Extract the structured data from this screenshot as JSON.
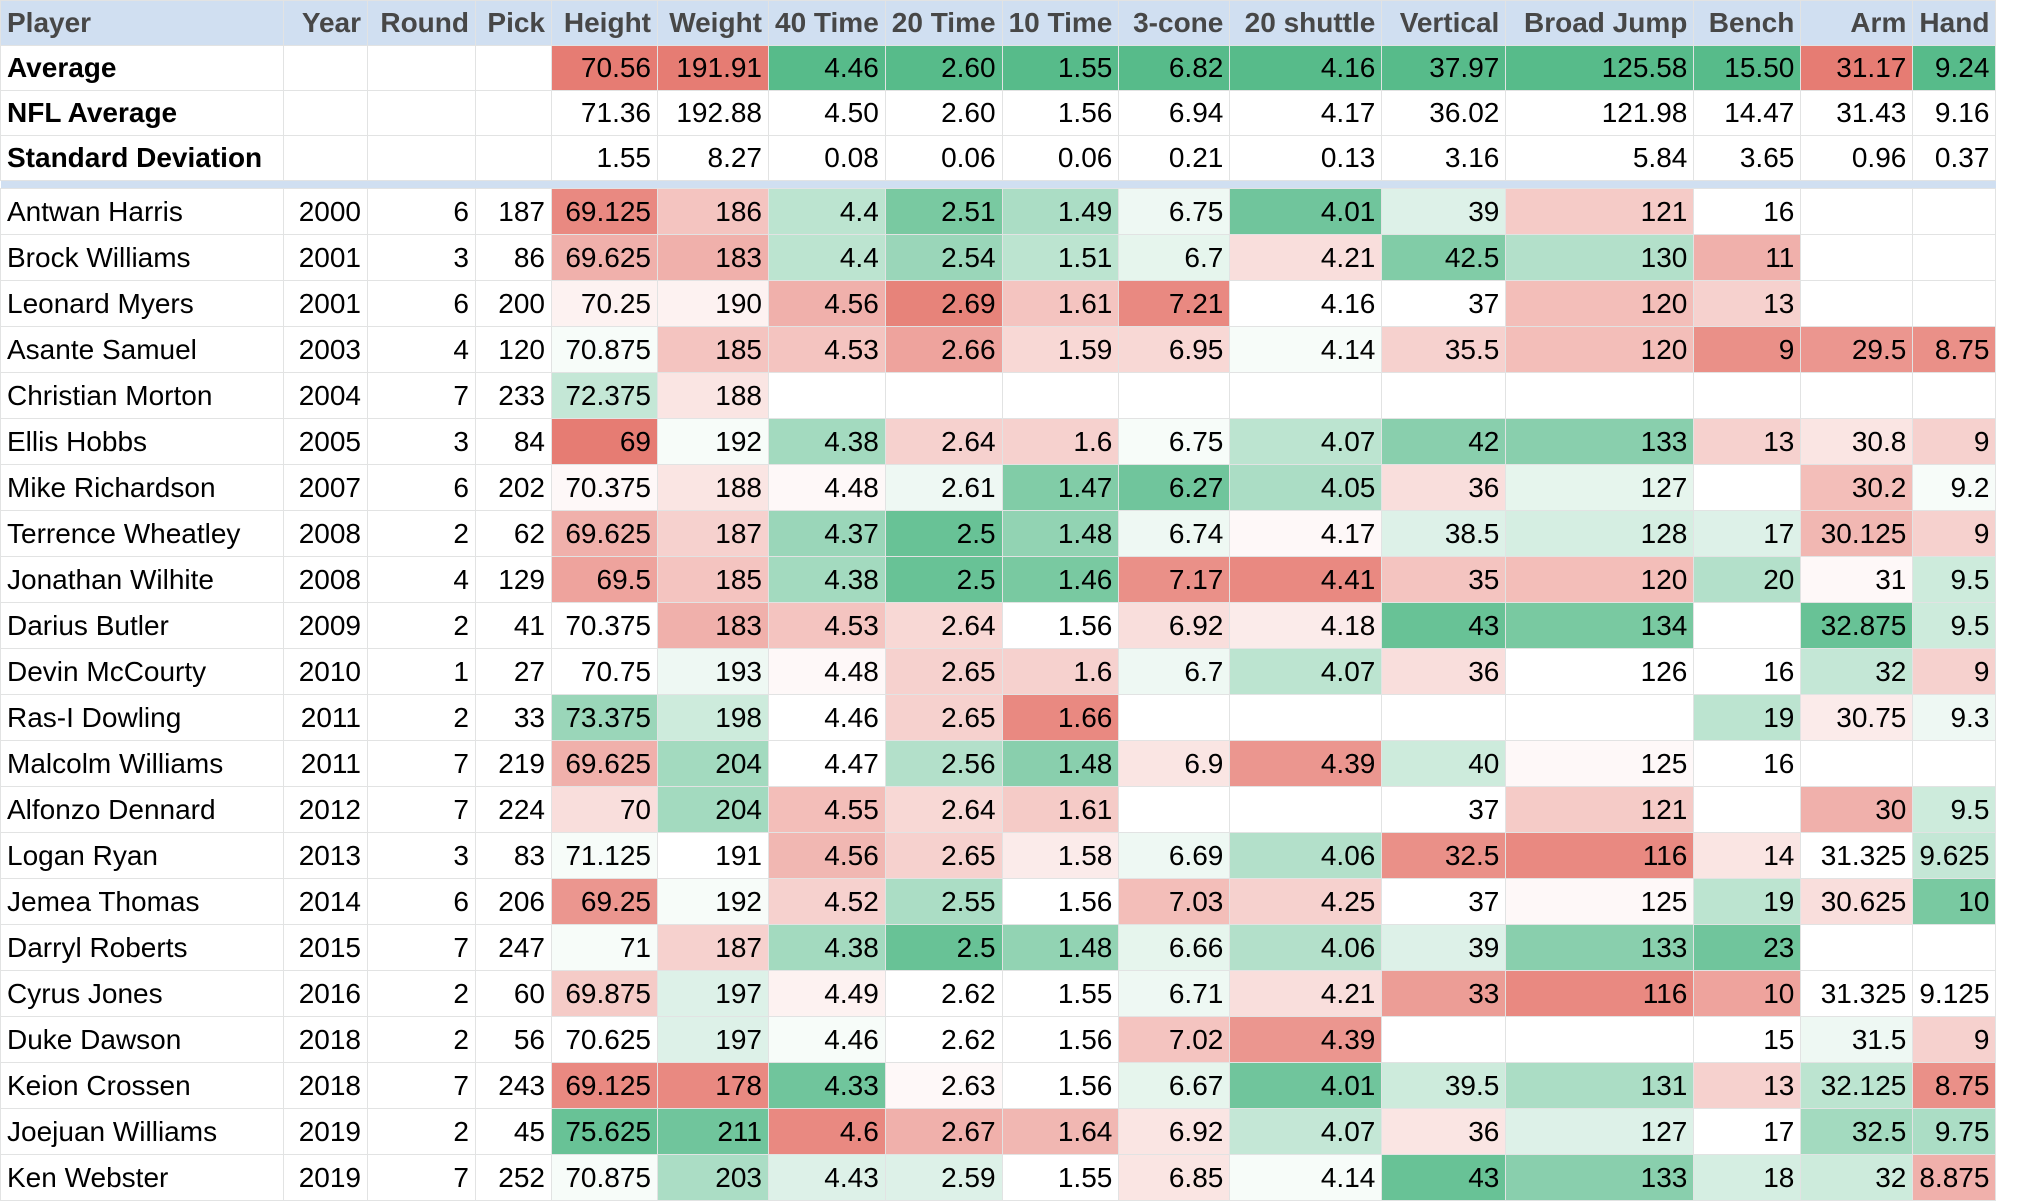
{
  "columns": [
    "Player",
    "Year",
    "Round",
    "Pick",
    "Height",
    "Weight",
    "40 Time",
    "20 Time",
    "10 Time",
    "3-cone",
    "20 shuttle",
    "Vertical",
    "Broad Jump",
    "Bench",
    "Arm",
    "Hand"
  ],
  "colors": {
    "header_bg": "#d0dff1",
    "header_text": "#474747",
    "grid": "#e2e3e3",
    "strong_green": "#57bb8a",
    "strong_red": "#e67c73"
  },
  "stats_rows": [
    {
      "label": "Average",
      "values": [
        "",
        "",
        "",
        "70.56",
        "191.91",
        "4.46",
        "2.60",
        "1.55",
        "6.82",
        "4.16",
        "37.97",
        "125.58",
        "15.50",
        "31.17",
        "9.24"
      ],
      "tones": [
        null,
        null,
        null,
        -1,
        -1,
        1,
        1,
        1,
        1,
        1,
        1,
        1,
        1,
        -1,
        1
      ]
    },
    {
      "label": "NFL Average",
      "values": [
        "",
        "",
        "",
        "71.36",
        "192.88",
        "4.50",
        "2.60",
        "1.56",
        "6.94",
        "4.17",
        "36.02",
        "121.98",
        "14.47",
        "31.43",
        "9.16"
      ],
      "tones": [
        null,
        null,
        null,
        null,
        null,
        null,
        null,
        null,
        null,
        null,
        null,
        null,
        null,
        null,
        null
      ]
    },
    {
      "label": "Standard Deviation",
      "values": [
        "",
        "",
        "",
        "1.55",
        "8.27",
        "0.08",
        "0.06",
        "0.06",
        "0.21",
        "0.13",
        "3.16",
        "5.84",
        "3.65",
        "0.96",
        "0.37"
      ],
      "tones": [
        null,
        null,
        null,
        null,
        null,
        null,
        null,
        null,
        null,
        null,
        null,
        null,
        null,
        null,
        null
      ]
    }
  ],
  "players": [
    {
      "name": "Antwan Harris",
      "values": [
        "2000",
        "6",
        "187",
        "69.125",
        "186",
        "4.4",
        "2.51",
        "1.49",
        "6.75",
        "4.01",
        "39",
        "121",
        "16",
        "",
        ""
      ],
      "tones": [
        null,
        null,
        null,
        -0.9,
        -0.45,
        0.4,
        0.8,
        0.5,
        0.1,
        0.85,
        0.2,
        -0.4,
        null,
        null,
        null
      ]
    },
    {
      "name": "Brock Williams",
      "values": [
        "2001",
        "3",
        "86",
        "69.625",
        "183",
        "4.4",
        "2.54",
        "1.51",
        "6.7",
        "4.21",
        "42.5",
        "130",
        "11",
        "",
        ""
      ],
      "tones": [
        null,
        null,
        null,
        -0.6,
        -0.6,
        0.4,
        0.6,
        0.4,
        0.15,
        -0.25,
        0.75,
        0.45,
        -0.6,
        null,
        null
      ]
    },
    {
      "name": "Leonard Myers",
      "values": [
        "2001",
        "6",
        "200",
        "70.25",
        "190",
        "4.56",
        "2.69",
        "1.61",
        "7.21",
        "4.16",
        "37",
        "120",
        "13",
        "",
        ""
      ],
      "tones": [
        null,
        null,
        null,
        -0.1,
        -0.1,
        -0.6,
        -0.95,
        -0.45,
        -0.9,
        0,
        0,
        -0.5,
        -0.35,
        null,
        null
      ]
    },
    {
      "name": "Asante Samuel",
      "values": [
        "2003",
        "4",
        "120",
        "70.875",
        "185",
        "4.53",
        "2.66",
        "1.59",
        "6.95",
        "4.14",
        "35.5",
        "120",
        "9",
        "29.5",
        "8.75"
      ],
      "tones": [
        null,
        null,
        null,
        0.05,
        -0.45,
        -0.45,
        -0.7,
        -0.3,
        -0.3,
        0.05,
        -0.35,
        -0.5,
        -0.85,
        -0.8,
        -0.85
      ]
    },
    {
      "name": "Christian Morton",
      "values": [
        "2004",
        "7",
        "233",
        "72.375",
        "188",
        "",
        "",
        "",
        "",
        "",
        "",
        "",
        "",
        "",
        ""
      ],
      "tones": [
        null,
        null,
        null,
        0.35,
        -0.2,
        null,
        null,
        null,
        null,
        null,
        null,
        null,
        null,
        null,
        null
      ]
    },
    {
      "name": "Ellis Hobbs",
      "values": [
        "2005",
        "3",
        "84",
        "69",
        "192",
        "4.38",
        "2.64",
        "1.6",
        "6.75",
        "4.07",
        "42",
        "133",
        "13",
        "30.8",
        "9"
      ],
      "tones": [
        null,
        null,
        null,
        -1,
        0.05,
        0.55,
        -0.35,
        -0.35,
        0.05,
        0.4,
        0.7,
        0.7,
        -0.35,
        -0.2,
        -0.35
      ]
    },
    {
      "name": "Mike Richardson",
      "values": [
        "2007",
        "6",
        "202",
        "70.375",
        "188",
        "4.48",
        "2.61",
        "1.47",
        "6.27",
        "4.05",
        "36",
        "127",
        "",
        "30.2",
        "9.2"
      ],
      "tones": [
        null,
        null,
        null,
        -0.05,
        -0.2,
        -0.05,
        0.1,
        0.75,
        0.85,
        0.5,
        -0.25,
        0.15,
        null,
        -0.5,
        0.05
      ]
    },
    {
      "name": "Terrence Wheatley",
      "values": [
        "2008",
        "2",
        "62",
        "69.625",
        "187",
        "4.37",
        "2.5",
        "1.48",
        "6.74",
        "4.17",
        "38.5",
        "128",
        "17",
        "30.125",
        "9"
      ],
      "tones": [
        null,
        null,
        null,
        -0.6,
        -0.35,
        0.6,
        0.9,
        0.65,
        0.1,
        -0.05,
        0.2,
        0.25,
        0.2,
        -0.55,
        -0.35
      ]
    },
    {
      "name": "Jonathan Wilhite",
      "values": [
        "2008",
        "4",
        "129",
        "69.5",
        "185",
        "4.38",
        "2.5",
        "1.46",
        "7.17",
        "4.41",
        "35",
        "120",
        "20",
        "31",
        "9.5"
      ],
      "tones": [
        null,
        null,
        null,
        -0.7,
        -0.45,
        0.55,
        0.9,
        0.8,
        -0.85,
        -0.9,
        -0.45,
        -0.5,
        0.45,
        -0.05,
        0.3
      ]
    },
    {
      "name": "Darius Butler",
      "values": [
        "2009",
        "2",
        "41",
        "70.375",
        "183",
        "4.53",
        "2.64",
        "1.56",
        "6.92",
        "4.18",
        "43",
        "134",
        "",
        "32.875",
        "9.5"
      ],
      "tones": [
        null,
        null,
        null,
        0,
        -0.6,
        -0.45,
        -0.3,
        0,
        -0.25,
        -0.15,
        0.9,
        0.8,
        null,
        0.9,
        0.3
      ]
    },
    {
      "name": "Devin McCourty",
      "values": [
        "2010",
        "1",
        "27",
        "70.75",
        "193",
        "4.48",
        "2.65",
        "1.6",
        "6.7",
        "4.07",
        "36",
        "126",
        "16",
        "32",
        "9"
      ],
      "tones": [
        null,
        null,
        null,
        0,
        0.1,
        -0.05,
        -0.35,
        -0.35,
        0.1,
        0.4,
        -0.25,
        0,
        0,
        0.35,
        -0.35
      ]
    },
    {
      "name": "Ras-I Dowling",
      "values": [
        "2011",
        "2",
        "33",
        "73.375",
        "198",
        "4.46",
        "2.65",
        "1.66",
        "",
        "",
        "",
        "",
        "19",
        "30.75",
        "9.3"
      ],
      "tones": [
        null,
        null,
        null,
        0.6,
        0.3,
        0,
        -0.35,
        -0.9,
        null,
        null,
        null,
        null,
        0.4,
        -0.15,
        0.1
      ]
    },
    {
      "name": "Malcolm Williams",
      "values": [
        "2011",
        "7",
        "219",
        "69.625",
        "204",
        "4.47",
        "2.56",
        "1.48",
        "6.9",
        "4.39",
        "40",
        "125",
        "16",
        "",
        ""
      ],
      "tones": [
        null,
        null,
        null,
        -0.6,
        0.55,
        0,
        0.45,
        0.7,
        -0.2,
        -0.8,
        0.3,
        -0.05,
        null,
        null,
        null
      ]
    },
    {
      "name": "Alfonzo Dennard",
      "values": [
        "2012",
        "7",
        "224",
        "70",
        "204",
        "4.55",
        "2.64",
        "1.61",
        "",
        "",
        "37",
        "121",
        "",
        "30",
        "9.5"
      ],
      "tones": [
        null,
        null,
        null,
        -0.25,
        0.55,
        -0.5,
        -0.3,
        -0.4,
        null,
        null,
        0,
        -0.4,
        null,
        -0.6,
        0.3
      ]
    },
    {
      "name": "Logan Ryan",
      "values": [
        "2013",
        "3",
        "83",
        "71.125",
        "191",
        "4.56",
        "2.65",
        "1.58",
        "6.69",
        "4.06",
        "32.5",
        "116",
        "14",
        "31.325",
        "9.625"
      ],
      "tones": [
        null,
        null,
        null,
        0.05,
        0,
        -0.55,
        -0.35,
        -0.15,
        0.1,
        0.45,
        -0.85,
        -0.9,
        -0.2,
        0,
        0.35
      ]
    },
    {
      "name": "Jemea Thomas",
      "values": [
        "2014",
        "6",
        "206",
        "69.25",
        "192",
        "4.52",
        "2.55",
        "1.56",
        "7.03",
        "4.25",
        "37",
        "125",
        "19",
        "30.625",
        "10"
      ],
      "tones": [
        null,
        null,
        null,
        -0.8,
        0.05,
        -0.35,
        0.5,
        0,
        -0.5,
        -0.35,
        0,
        -0.05,
        0.4,
        -0.25,
        0.8
      ]
    },
    {
      "name": "Darryl Roberts",
      "values": [
        "2015",
        "7",
        "247",
        "71",
        "187",
        "4.38",
        "2.5",
        "1.48",
        "6.66",
        "4.06",
        "39",
        "133",
        "23",
        "",
        ""
      ],
      "tones": [
        null,
        null,
        null,
        0.05,
        -0.35,
        0.55,
        0.9,
        0.65,
        0.15,
        0.45,
        0.2,
        0.7,
        0.85,
        null,
        null
      ]
    },
    {
      "name": "Cyrus Jones",
      "values": [
        "2016",
        "2",
        "60",
        "69.875",
        "197",
        "4.49",
        "2.62",
        "1.55",
        "6.71",
        "4.21",
        "33",
        "116",
        "10",
        "31.325",
        "9.125"
      ],
      "tones": [
        null,
        null,
        null,
        -0.4,
        0.2,
        -0.1,
        0,
        0,
        0.1,
        -0.25,
        -0.75,
        -0.9,
        -0.7,
        0,
        0
      ]
    },
    {
      "name": "Duke Dawson",
      "values": [
        "2018",
        "2",
        "56",
        "70.625",
        "197",
        "4.46",
        "2.62",
        "1.56",
        "7.02",
        "4.39",
        "",
        "",
        "15",
        "31.5",
        "9"
      ],
      "tones": [
        null,
        null,
        null,
        0,
        0.2,
        0.05,
        0,
        0,
        -0.45,
        -0.8,
        null,
        null,
        0,
        0.1,
        -0.35
      ]
    },
    {
      "name": "Keion Crossen",
      "values": [
        "2018",
        "7",
        "243",
        "69.125",
        "178",
        "4.33",
        "2.63",
        "1.56",
        "6.67",
        "4.01",
        "39.5",
        "131",
        "13",
        "32.125",
        "8.75"
      ],
      "tones": [
        null,
        null,
        null,
        -0.9,
        -0.9,
        0.85,
        -0.05,
        0,
        0.15,
        0.85,
        0.3,
        0.5,
        -0.35,
        0.4,
        -0.85
      ]
    },
    {
      "name": "Joejuan Williams",
      "values": [
        "2019",
        "2",
        "45",
        "75.625",
        "211",
        "4.6",
        "2.67",
        "1.64",
        "6.92",
        "4.07",
        "36",
        "127",
        "17",
        "32.5",
        "9.75"
      ],
      "tones": [
        null,
        null,
        null,
        0.9,
        0.85,
        -0.9,
        -0.6,
        -0.55,
        -0.2,
        0.35,
        -0.2,
        0.2,
        0,
        0.55,
        0.5
      ]
    },
    {
      "name": "Ken Webster",
      "values": [
        "2019",
        "7",
        "252",
        "70.875",
        "203",
        "4.43",
        "2.59",
        "1.55",
        "6.85",
        "4.14",
        "43",
        "133",
        "18",
        "32",
        "8.875"
      ],
      "tones": [
        null,
        null,
        null,
        0.05,
        0.5,
        0.2,
        0.2,
        0,
        -0.2,
        0.05,
        0.9,
        0.7,
        0.25,
        0.3,
        -0.6
      ]
    }
  ]
}
